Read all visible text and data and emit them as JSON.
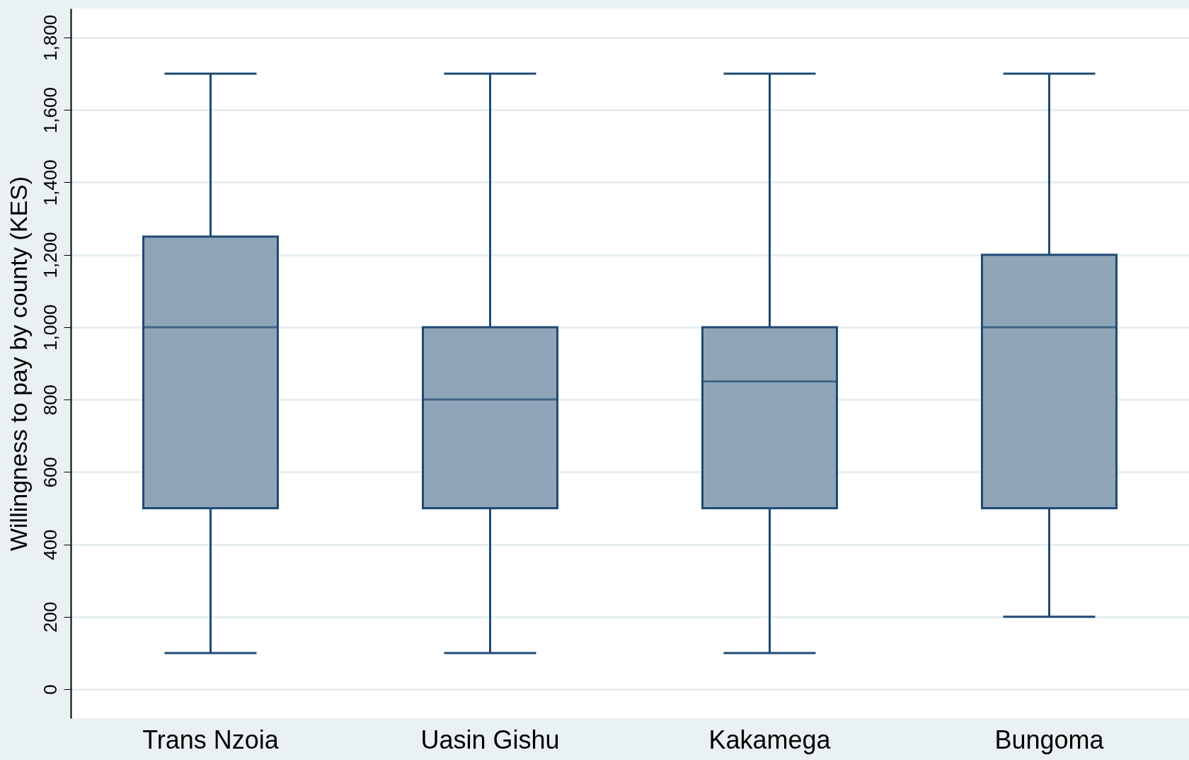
{
  "chart_data": {
    "type": "box",
    "ylabel": "Willingness to pay by county (KES)",
    "categories": [
      "Trans Nzoia",
      "Uasin Gishu",
      "Kakamega",
      "Bungoma"
    ],
    "boxes": [
      {
        "low": 100,
        "q1": 500,
        "median": 1000,
        "q3": 1250,
        "high": 1700
      },
      {
        "low": 100,
        "q1": 500,
        "median": 800,
        "q3": 1000,
        "high": 1700
      },
      {
        "low": 100,
        "q1": 500,
        "median": 850,
        "q3": 1000,
        "high": 1700
      },
      {
        "low": 200,
        "q1": 500,
        "median": 1000,
        "q3": 1200,
        "high": 1700
      }
    ],
    "color": "#8fa5b8",
    "ylim": [
      -80,
      1880
    ],
    "yticks": [
      0,
      200,
      400,
      600,
      800,
      {
        "value": 1000,
        "label": "1,000"
      },
      {
        "value": 1200,
        "label": "1,200"
      },
      {
        "value": 1400,
        "label": "1,400"
      },
      {
        "value": 1600,
        "label": "1,600"
      },
      {
        "value": 1800,
        "label": "1,800"
      }
    ],
    "grid": "y"
  }
}
